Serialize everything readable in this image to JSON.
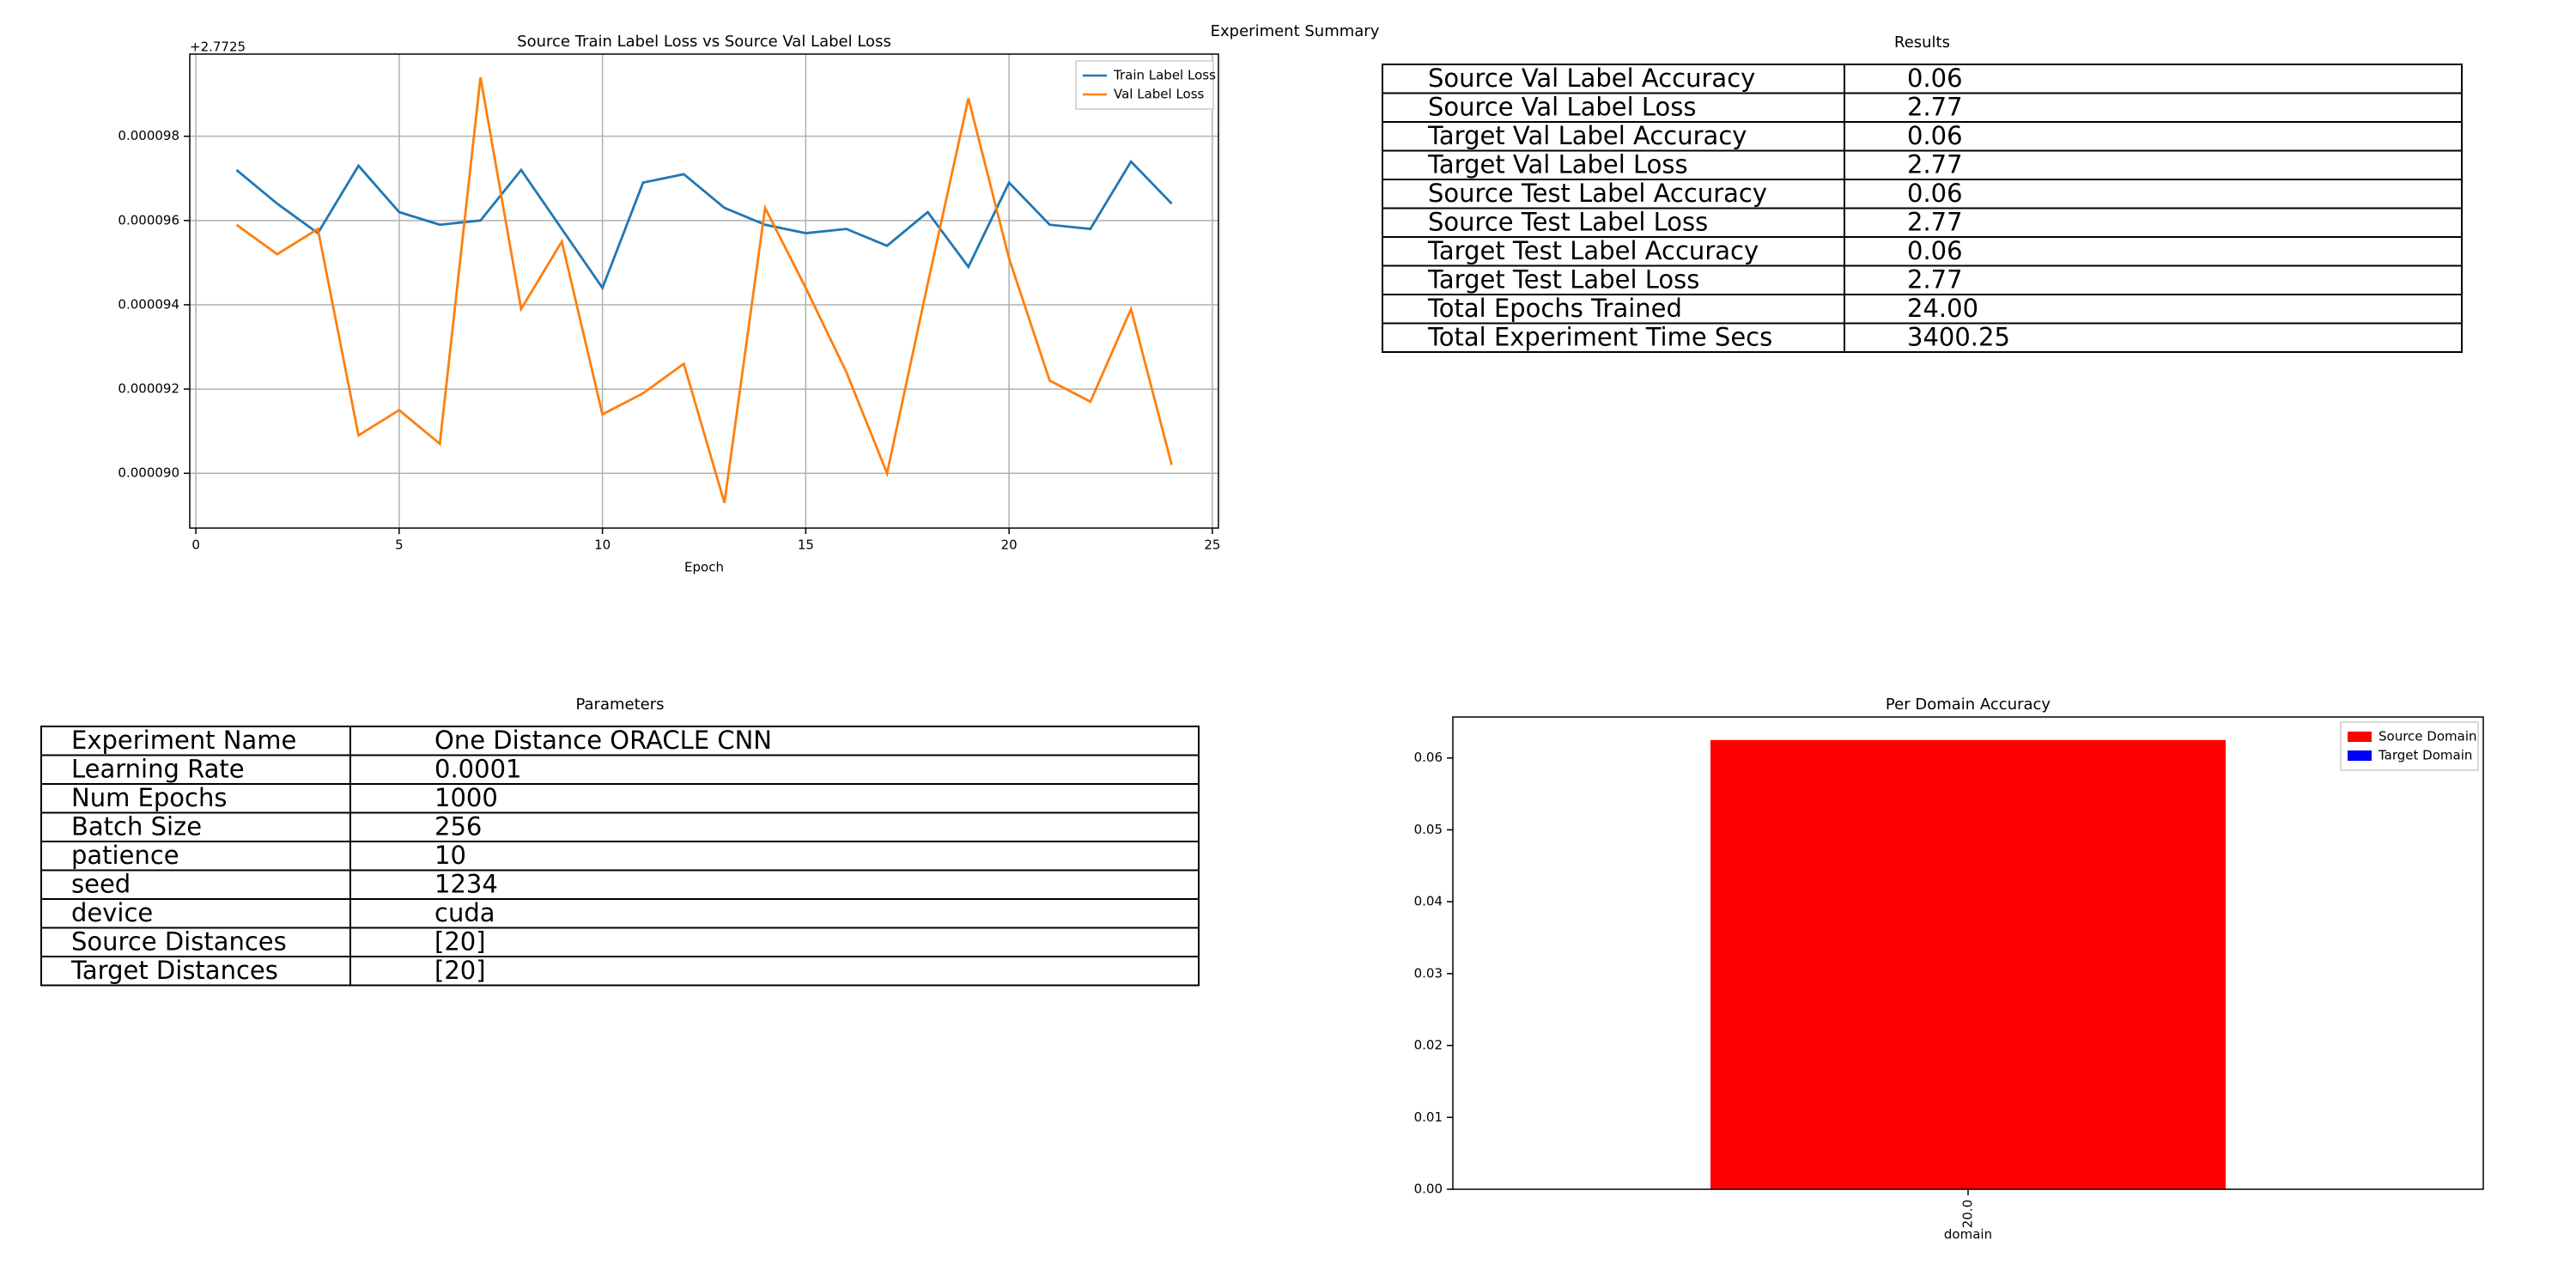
{
  "title": "Experiment Summary",
  "chart_data": [
    {
      "type": "line",
      "title": "Source Train Label Loss vs Source Val Label Loss",
      "xlabel": "Epoch",
      "y_offset_label": "+2.7725",
      "x": [
        1,
        2,
        3,
        4,
        5,
        6,
        7,
        8,
        9,
        10,
        11,
        12,
        13,
        14,
        15,
        16,
        17,
        18,
        19,
        20,
        21,
        22,
        23,
        24
      ],
      "series": [
        {
          "name": "Train Label Loss",
          "color": "#1f77b4",
          "values": [
            9.72e-05,
            9.64e-05,
            9.57e-05,
            9.73e-05,
            9.62e-05,
            9.59e-05,
            9.6e-05,
            9.72e-05,
            9.58e-05,
            9.44e-05,
            9.69e-05,
            9.71e-05,
            9.63e-05,
            9.59e-05,
            9.57e-05,
            9.58e-05,
            9.54e-05,
            9.62e-05,
            9.49e-05,
            9.69e-05,
            9.59e-05,
            9.58e-05,
            9.74e-05,
            9.64e-05
          ]
        },
        {
          "name": "Val Label Loss",
          "color": "#ff7f0e",
          "values": [
            9.59e-05,
            9.52e-05,
            9.58e-05,
            9.09e-05,
            9.15e-05,
            9.07e-05,
            9.94e-05,
            9.39e-05,
            9.55e-05,
            9.14e-05,
            9.19e-05,
            9.26e-05,
            8.93e-05,
            9.63e-05,
            9.44e-05,
            9.24e-05,
            9e-05,
            9.45e-05,
            9.89e-05,
            9.51e-05,
            9.22e-05,
            9.17e-05,
            9.39e-05,
            9.02e-05
          ]
        }
      ],
      "xlim": [
        -0.15,
        25.15
      ],
      "xticks": [
        0,
        5,
        10,
        15,
        20,
        25
      ],
      "ylim": [
        8.87e-05,
        9.995e-05
      ],
      "yticks": [
        {
          "value": 9e-05,
          "label": "0.000090"
        },
        {
          "value": 9.2e-05,
          "label": "0.000092"
        },
        {
          "value": 9.4e-05,
          "label": "0.000094"
        },
        {
          "value": 9.6e-05,
          "label": "0.000096"
        },
        {
          "value": 9.8e-05,
          "label": "0.000098"
        }
      ],
      "grid": true,
      "legend": "upper right"
    },
    {
      "type": "bar",
      "title": "Per Domain Accuracy",
      "xlabel": "domain",
      "categories": [
        "20.0"
      ],
      "series": [
        {
          "name": "Source Domain",
          "color": "#ff0000",
          "values": [
            0.0625
          ]
        },
        {
          "name": "Target Domain",
          "color": "#0000ff",
          "values": [
            null
          ]
        }
      ],
      "ylim": [
        0,
        0.0657
      ],
      "yticks": [
        {
          "value": 0,
          "label": "0.00"
        },
        {
          "value": 0.01,
          "label": "0.01"
        },
        {
          "value": 0.02,
          "label": "0.02"
        },
        {
          "value": 0.03,
          "label": "0.03"
        },
        {
          "value": 0.04,
          "label": "0.04"
        },
        {
          "value": 0.05,
          "label": "0.05"
        },
        {
          "value": 0.06,
          "label": "0.06"
        }
      ],
      "grid": false,
      "legend": "upper right"
    }
  ],
  "results": {
    "title": "Results",
    "rows": [
      [
        "Source Val Label Accuracy",
        "0.06"
      ],
      [
        "Source Val Label Loss",
        "2.77"
      ],
      [
        "Target Val Label Accuracy",
        "0.06"
      ],
      [
        "Target Val Label Loss",
        "2.77"
      ],
      [
        "Source Test Label Accuracy",
        "0.06"
      ],
      [
        "Source Test Label Loss",
        "2.77"
      ],
      [
        "Target Test Label Accuracy",
        "0.06"
      ],
      [
        "Target Test Label Loss",
        "2.77"
      ],
      [
        "Total Epochs Trained",
        "24.00"
      ],
      [
        "Total Experiment Time Secs",
        "3400.25"
      ]
    ]
  },
  "parameters": {
    "title": "Parameters",
    "rows": [
      [
        "Experiment Name",
        "One Distance ORACLE CNN"
      ],
      [
        "Learning Rate",
        "0.0001"
      ],
      [
        "Num Epochs",
        "1000"
      ],
      [
        "Batch Size",
        "256"
      ],
      [
        "patience",
        "10"
      ],
      [
        "seed",
        "1234"
      ],
      [
        "device",
        "cuda"
      ],
      [
        "Source Distances",
        "[20]"
      ],
      [
        "Target Distances",
        "[20]"
      ]
    ]
  }
}
